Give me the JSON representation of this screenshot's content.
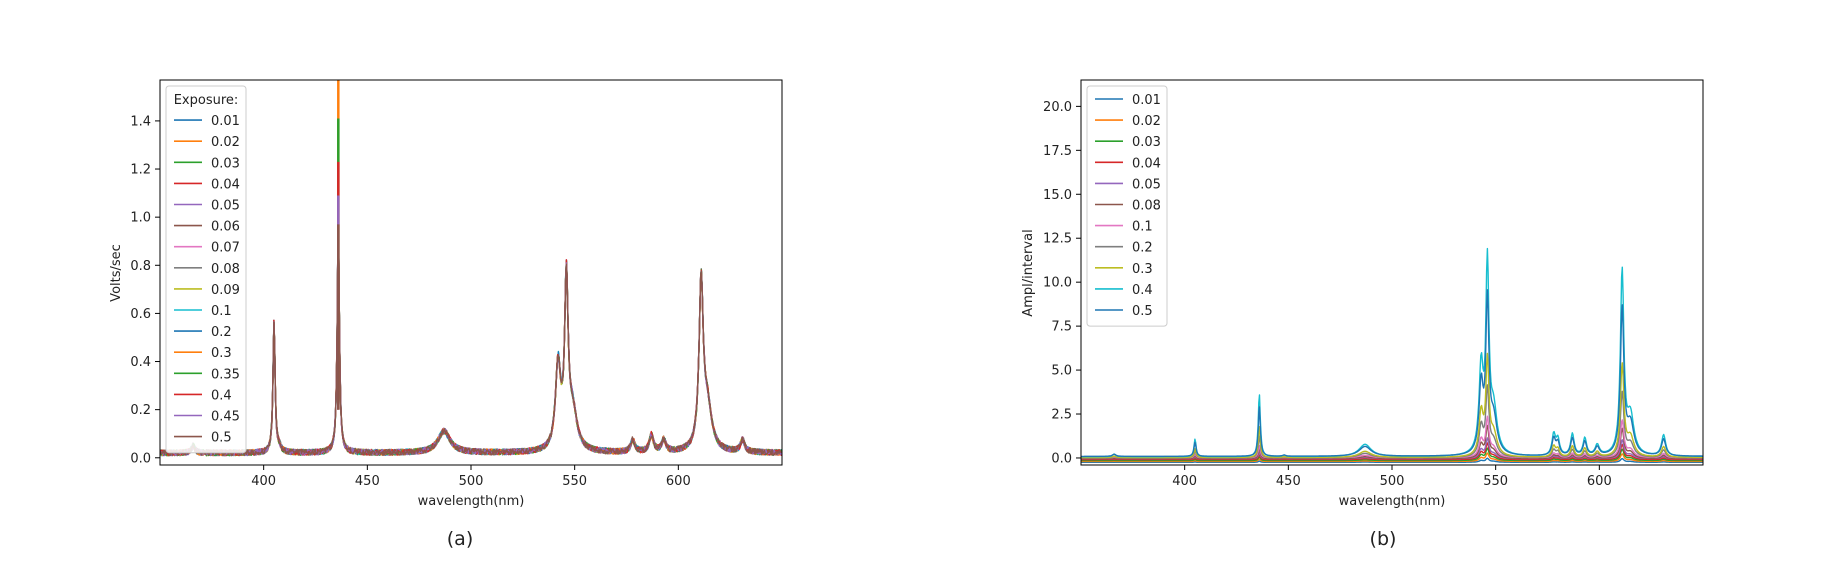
{
  "chart_data": [
    {
      "type": "line",
      "caption": "(a)",
      "xlabel": "wavelength(nm)",
      "ylabel": "Volts/sec",
      "xlim": [
        350,
        650
      ],
      "ylim": [
        -0.03,
        1.57
      ],
      "xticks": [
        400,
        450,
        500,
        550,
        600
      ],
      "yticks": [
        0.0,
        0.2,
        0.4,
        0.6,
        0.8,
        1.0,
        1.2,
        1.4
      ],
      "ytick_labels": [
        "0.0",
        "0.2",
        "0.4",
        "0.6",
        "0.8",
        "1.0",
        "1.2",
        "1.4"
      ],
      "grid": false,
      "legend": {
        "title": "Exposure:",
        "placement": "upper-left",
        "entries": [
          "0.01",
          "0.02",
          "0.03",
          "0.04",
          "0.05",
          "0.06",
          "0.07",
          "0.08",
          "0.09",
          "0.1",
          "0.2",
          "0.3",
          "0.35",
          "0.4",
          "0.45",
          "0.5"
        ],
        "colors": [
          "#1f77b4",
          "#ff7f0e",
          "#2ca02c",
          "#d62728",
          "#9467bd",
          "#8c564b",
          "#e377c2",
          "#7f7f7f",
          "#bcbd22",
          "#17becf",
          "#1f77b4",
          "#ff7f0e",
          "#2ca02c",
          "#d62728",
          "#9467bd",
          "#8c564b"
        ]
      },
      "baseline": 0.02,
      "noise": 0.012,
      "peaks": [
        {
          "x": 366,
          "h": 0.03,
          "w": 1.0
        },
        {
          "x": 405,
          "h": 0.54,
          "w": 0.6
        },
        {
          "x": 407.5,
          "h": 0.02,
          "w": 1.0
        },
        {
          "x": 436,
          "h": 0.97,
          "w": 0.6
        },
        {
          "x": 487,
          "h": 0.09,
          "w": 3.5
        },
        {
          "x": 542,
          "h": 0.35,
          "w": 1.5
        },
        {
          "x": 546,
          "h": 0.68,
          "w": 1.0
        },
        {
          "x": 549,
          "h": 0.16,
          "w": 2.5
        },
        {
          "x": 578,
          "h": 0.05,
          "w": 1.2
        },
        {
          "x": 587,
          "h": 0.07,
          "w": 1.2
        },
        {
          "x": 593,
          "h": 0.05,
          "w": 1.2
        },
        {
          "x": 611,
          "h": 0.68,
          "w": 1.2
        },
        {
          "x": 614,
          "h": 0.18,
          "w": 2.5
        },
        {
          "x": 631,
          "h": 0.05,
          "w": 1.2
        }
      ],
      "spike_436_stack": [
        1.57,
        1.41,
        1.23,
        1.09,
        0.97
      ],
      "series_scale": [
        1.0,
        1.0,
        0.99,
        1.0,
        1.01,
        1.0,
        1.0,
        1.0,
        1.0,
        1.01,
        1.0,
        1.0,
        1.0,
        1.01,
        1.0,
        1.0
      ]
    },
    {
      "type": "line",
      "caption": "(b)",
      "xlabel": "wavelength(nm)",
      "ylabel": "Ampl/interval",
      "xlim": [
        350,
        650
      ],
      "ylim": [
        -0.4,
        21.5
      ],
      "xticks": [
        400,
        450,
        500,
        550,
        600
      ],
      "yticks": [
        0.0,
        2.5,
        5.0,
        7.5,
        10.0,
        12.5,
        15.0,
        17.5,
        20.0
      ],
      "ytick_labels": [
        "0.0",
        "2.5",
        "5.0",
        "7.5",
        "10.0",
        "12.5",
        "15.0",
        "17.5",
        "20.0"
      ],
      "grid": false,
      "legend": {
        "title": "",
        "placement": "upper-left",
        "entries": [
          "0.01",
          "0.02",
          "0.03",
          "0.04",
          "0.05",
          "0.08",
          "0.1",
          "0.2",
          "0.3",
          "0.4",
          "0.5"
        ],
        "colors": [
          "#1f77b4",
          "#ff7f0e",
          "#2ca02c",
          "#d62728",
          "#9467bd",
          "#8c564b",
          "#e377c2",
          "#7f7f7f",
          "#bcbd22",
          "#17becf",
          "#1f77b4"
        ]
      },
      "baseline": 0.0,
      "noise": 0.0,
      "series_offsets": [
        -0.25,
        -0.2,
        -0.15,
        -0.1,
        -0.05,
        -0.05,
        0.0,
        0.0,
        0.0,
        0.02,
        0.05
      ],
      "series_scale": [
        0.02,
        0.04,
        0.06,
        0.08,
        0.1,
        0.16,
        0.2,
        0.35,
        0.5,
        1.0,
        0.8
      ],
      "peaks": [
        {
          "x": 366,
          "h": 0.15,
          "w": 1.0
        },
        {
          "x": 405,
          "h": 1.0,
          "w": 0.6
        },
        {
          "x": 436,
          "h": 3.6,
          "w": 0.6
        },
        {
          "x": 448,
          "h": 0.08,
          "w": 1.0
        },
        {
          "x": 487,
          "h": 0.7,
          "w": 3.5
        },
        {
          "x": 543,
          "h": 4.8,
          "w": 1.2
        },
        {
          "x": 546,
          "h": 10.4,
          "w": 0.9
        },
        {
          "x": 549,
          "h": 2.5,
          "w": 2.0
        },
        {
          "x": 578,
          "h": 1.2,
          "w": 1.0
        },
        {
          "x": 580,
          "h": 0.9,
          "w": 1.0
        },
        {
          "x": 587,
          "h": 1.25,
          "w": 1.0
        },
        {
          "x": 593,
          "h": 1.0,
          "w": 1.0
        },
        {
          "x": 599,
          "h": 0.6,
          "w": 1.2
        },
        {
          "x": 611,
          "h": 10.4,
          "w": 1.0
        },
        {
          "x": 615,
          "h": 2.2,
          "w": 2.0
        },
        {
          "x": 631,
          "h": 1.2,
          "w": 1.2
        }
      ]
    }
  ]
}
